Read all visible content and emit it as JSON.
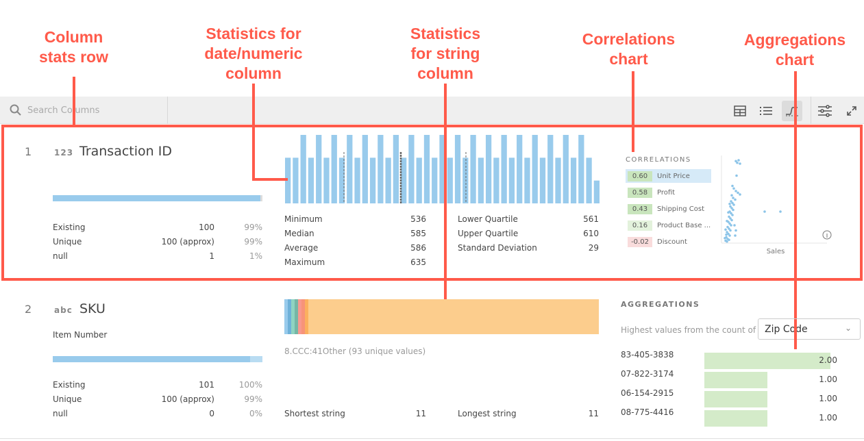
{
  "annotations": [
    {
      "id": "column-stats-row",
      "text": "Column\nstats row"
    },
    {
      "id": "numeric-stats",
      "text": "Statistics for\ndate/numeric\ncolumn"
    },
    {
      "id": "string-stats",
      "text": "Statistics\nfor string\ncolumn"
    },
    {
      "id": "correlations",
      "text": "Correlations\nchart"
    },
    {
      "id": "aggregations",
      "text": "Aggregations\nchart"
    }
  ],
  "toolbar": {
    "search_placeholder": "Search Columns",
    "icons": [
      "search-icon",
      "table-view-icon",
      "list-view-icon",
      "stats-view-icon",
      "settings-sliders-icon",
      "expand-icon"
    ],
    "active_view": "stats-view"
  },
  "colors": {
    "accent_bar": "#99cbec",
    "callout": "#ff5a4a",
    "agg_bar": "#d4ebc9",
    "corr_pos": "#c9e5bd",
    "corr_weak": "#e3f2dc",
    "corr_neg": "#f9dcdc"
  },
  "columns": [
    {
      "index": "1",
      "type_icon": "123",
      "name": "Transaction ID",
      "fill_fraction": 0.99,
      "stats": [
        {
          "label": "Existing",
          "value": "100",
          "pct": "99%"
        },
        {
          "label": "Unique",
          "value": "100 (approx)",
          "pct": "99%"
        },
        {
          "label": "null",
          "value": "1",
          "pct": "1%"
        }
      ],
      "numeric_left": [
        {
          "label": "Minimum",
          "value": "536"
        },
        {
          "label": "Median",
          "value": "585"
        },
        {
          "label": "Average",
          "value": "586"
        },
        {
          "label": "Maximum",
          "value": "635"
        }
      ],
      "numeric_right": [
        {
          "label": "Lower Quartile",
          "value": "561"
        },
        {
          "label": "Upper Quartile",
          "value": "610"
        },
        {
          "label": "Standard Deviation",
          "value": "29"
        }
      ],
      "correlations": {
        "title": "CORRELATIONS",
        "items": [
          {
            "value": "0.60",
            "label": "Unit Price",
            "selected": true,
            "color": "#c9e5bd"
          },
          {
            "value": "0.58",
            "label": "Profit",
            "color": "#c9e5bd"
          },
          {
            "value": "0.43",
            "label": "Shipping Cost",
            "color": "#c9e5bd"
          },
          {
            "value": "0.16",
            "label": "Product Base ...",
            "color": "#e3f2dc"
          },
          {
            "value": "-0.02",
            "label": "Discount",
            "color": "#f9dcdc"
          }
        ],
        "x_label": "Sales"
      }
    },
    {
      "index": "2",
      "type_icon": "abc",
      "name": "SKU",
      "description": "Item Number",
      "fill_fraction": 0.94,
      "stats": [
        {
          "label": "Existing",
          "value": "101",
          "pct": "100%"
        },
        {
          "label": "Unique",
          "value": "100 (approx)",
          "pct": "99%"
        },
        {
          "label": "null",
          "value": "0",
          "pct": "0%"
        }
      ],
      "top_values_label": "8.CCC:41Other (93 unique values)",
      "string_stats": [
        {
          "label": "Shortest string",
          "value": "11"
        },
        {
          "label": "Longest string",
          "value": "11"
        }
      ],
      "aggregations": {
        "title": "AGGREGATIONS",
        "subtitle": "Highest values from the count of",
        "selected_field": "Zip Code",
        "rows": [
          {
            "key": "83-405-3838",
            "value": 2,
            "label": "2.00"
          },
          {
            "key": "07-822-3174",
            "value": 1,
            "label": "1.00"
          },
          {
            "key": "06-154-2915",
            "value": 1,
            "label": "1.00"
          },
          {
            "key": "08-775-4416",
            "value": 1,
            "label": "1.00"
          }
        ]
      }
    }
  ],
  "chart_data": [
    {
      "type": "bar",
      "values": [
        2,
        2,
        3,
        2,
        3,
        2,
        3,
        2,
        3,
        2,
        3,
        2,
        3,
        2,
        3,
        2,
        3,
        2,
        3,
        2,
        3,
        2,
        3,
        2,
        3,
        2,
        3,
        2,
        3,
        2,
        3,
        2,
        3,
        2,
        3,
        2,
        3,
        2,
        3,
        2,
        1
      ],
      "markers": [
        "lower-quartile",
        "median",
        "upper-quartile"
      ],
      "color": "#99cbec"
    },
    {
      "type": "bar",
      "stacked": true,
      "segments": [
        {
          "value": 1,
          "color": "#99cbec"
        },
        {
          "value": 1,
          "color": "#6fb1d9"
        },
        {
          "value": 1,
          "color": "#8fd4c1"
        },
        {
          "value": 1,
          "color": "#76b6a5"
        },
        {
          "value": 1,
          "color": "#f7998f"
        },
        {
          "value": 1,
          "color": "#f79379"
        },
        {
          "value": 1,
          "color": "#fbb05f"
        },
        {
          "value": 93,
          "color": "#fccd8d"
        }
      ]
    },
    {
      "type": "scatter",
      "xlabel": "Sales",
      "points": [
        [
          20,
          95
        ],
        [
          22,
          93
        ],
        [
          24,
          96
        ],
        [
          26,
          92
        ],
        [
          21,
          78
        ],
        [
          15,
          66
        ],
        [
          17,
          63
        ],
        [
          20,
          60
        ],
        [
          23,
          58
        ],
        [
          26,
          56
        ],
        [
          14,
          55
        ],
        [
          16,
          52
        ],
        [
          19,
          50
        ],
        [
          13,
          48
        ],
        [
          15,
          46
        ],
        [
          17,
          44
        ],
        [
          12,
          42
        ],
        [
          14,
          40
        ],
        [
          16,
          38
        ],
        [
          11,
          36
        ],
        [
          13,
          34
        ],
        [
          15,
          32
        ],
        [
          10,
          30
        ],
        [
          12,
          28
        ],
        [
          14,
          26
        ],
        [
          9,
          24
        ],
        [
          11,
          22
        ],
        [
          13,
          20
        ],
        [
          8,
          18
        ],
        [
          10,
          16
        ],
        [
          12,
          14
        ],
        [
          7,
          12
        ],
        [
          9,
          10
        ],
        [
          11,
          8
        ],
        [
          6,
          6
        ],
        [
          8,
          4
        ],
        [
          10,
          3
        ],
        [
          5,
          2
        ],
        [
          7,
          1
        ],
        [
          18,
          20
        ],
        [
          20,
          14
        ],
        [
          19,
          8
        ],
        [
          62,
          36
        ],
        [
          85,
          36
        ],
        [
          4,
          5
        ],
        [
          6,
          9
        ],
        [
          5,
          15
        ],
        [
          7,
          25
        ],
        [
          9,
          35
        ],
        [
          11,
          45
        ]
      ]
    }
  ]
}
